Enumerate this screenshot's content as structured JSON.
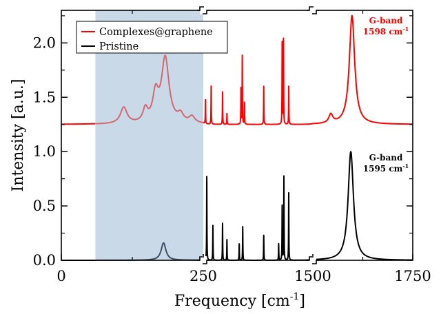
{
  "chart_data": {
    "type": "line",
    "title": "",
    "xlabel": "Frequency [cm",
    "xlabel_sup": "-1",
    "xlabel_end": "]",
    "ylabel": "Intensity [a.u.]",
    "ylim": [
      0.0,
      2.3
    ],
    "y_ticks": [
      "0.0",
      "0.5",
      "1.0",
      "1.5",
      "2.0"
    ],
    "x_axis_break": "broken axis with three linear segments: 0–250, 250–1500 (compressed), 1500–1750",
    "x_ticks": [
      "0",
      "250",
      "1500",
      "1750"
    ],
    "shaded_region": {
      "x": [
        60,
        250
      ],
      "color": "#c9d9e8"
    },
    "legend": {
      "placement": "top-left",
      "entries": [
        "Complexes@graphene",
        "Pristine"
      ]
    },
    "series": [
      {
        "name": "Complexes@graphene",
        "color": "#ff0000",
        "shaded_color": "#cf6a6f",
        "baseline": 1.25,
        "peaks": [
          {
            "x": 110,
            "h": 0.15,
            "w": 7
          },
          {
            "x": 148,
            "h": 0.12,
            "w": 5
          },
          {
            "x": 166,
            "h": 0.25,
            "w": 6
          },
          {
            "x": 183,
            "h": 0.6,
            "w": 8
          },
          {
            "x": 210,
            "h": 0.07,
            "w": 6
          },
          {
            "x": 230,
            "h": 0.06,
            "w": 6
          },
          {
            "x": 275,
            "h": 0.22,
            "w": 2
          },
          {
            "x": 340,
            "h": 0.35,
            "w": 2
          },
          {
            "x": 470,
            "h": 0.3,
            "w": 2
          },
          {
            "x": 520,
            "h": 0.1,
            "w": 2
          },
          {
            "x": 680,
            "h": 0.33,
            "w": 2
          },
          {
            "x": 695,
            "h": 0.63,
            "w": 2
          },
          {
            "x": 720,
            "h": 0.2,
            "w": 2
          },
          {
            "x": 940,
            "h": 0.35,
            "w": 2
          },
          {
            "x": 1150,
            "h": 0.75,
            "w": 2
          },
          {
            "x": 1165,
            "h": 0.78,
            "w": 2
          },
          {
            "x": 1225,
            "h": 0.35,
            "w": 2
          },
          {
            "x": 1545,
            "h": 0.08,
            "w": 6
          },
          {
            "x": 1598,
            "h": 1.0,
            "w": 8
          }
        ],
        "annotation": {
          "line1": "G-band",
          "line2": "1598 cm",
          "sup": "-1",
          "y": 2.18
        }
      },
      {
        "name": "Pristine",
        "color": "#000000",
        "shaded_color": "#3c4e63",
        "baseline": 0.0,
        "peaks": [
          {
            "x": 180,
            "h": 0.16,
            "w": 5
          },
          {
            "x": 290,
            "h": 0.77,
            "w": 2
          },
          {
            "x": 360,
            "h": 0.32,
            "w": 2
          },
          {
            "x": 470,
            "h": 0.34,
            "w": 2
          },
          {
            "x": 520,
            "h": 0.19,
            "w": 2
          },
          {
            "x": 660,
            "h": 0.15,
            "w": 2
          },
          {
            "x": 700,
            "h": 0.31,
            "w": 2
          },
          {
            "x": 940,
            "h": 0.23,
            "w": 2
          },
          {
            "x": 1110,
            "h": 0.15,
            "w": 2
          },
          {
            "x": 1150,
            "h": 0.5,
            "w": 2
          },
          {
            "x": 1170,
            "h": 0.77,
            "w": 2
          },
          {
            "x": 1225,
            "h": 0.62,
            "w": 2
          },
          {
            "x": 1595,
            "h": 1.0,
            "w": 8
          }
        ],
        "annotation": {
          "line1": "G-band",
          "line2": "1595 cm",
          "sup": "-1",
          "y": 0.92
        }
      }
    ]
  }
}
